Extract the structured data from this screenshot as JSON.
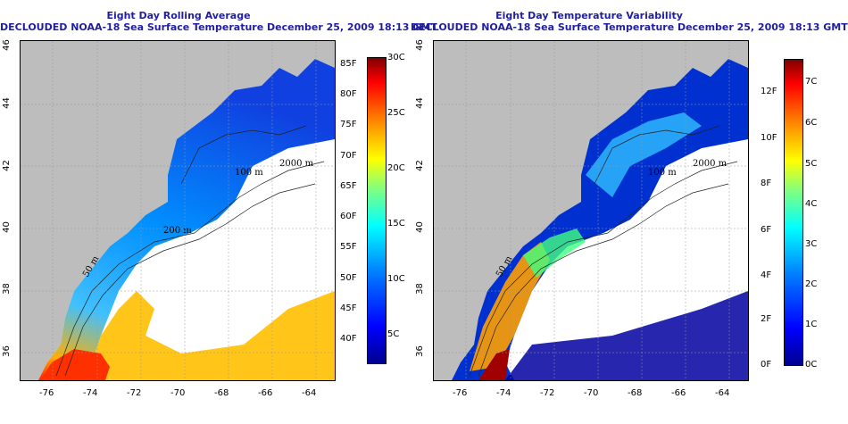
{
  "left": {
    "title_line1": "Eight Day Rolling Average",
    "title_line2": "DECLOUDED NOAA-18 Sea Surface Temperature December 25, 2009 18:13 GMT",
    "contours": [
      "2000 m",
      "100 m",
      "200 m",
      "50 m"
    ],
    "colorbar_f": [
      "85F",
      "80F",
      "75F",
      "70F",
      "65F",
      "60F",
      "55F",
      "50F",
      "45F",
      "40F"
    ],
    "colorbar_c": [
      "30C",
      "25C",
      "20C",
      "15C",
      "10C",
      "5C"
    ],
    "colors": [
      "#00008f",
      "#0000ff",
      "#0080ff",
      "#00ffff",
      "#80ff80",
      "#ffff00",
      "#ff8000",
      "#ff0000",
      "#800000"
    ]
  },
  "right": {
    "title_line1": "Eight Day Temperature Variability",
    "title_line2": "DECLOUDED NOAA-18 Sea Surface Temperature December 25, 2009 18:13 GMT",
    "contours": [
      "2000 m",
      "100 m",
      "50 m"
    ],
    "colorbar_f": [
      "12F",
      "10F",
      "8F",
      "6F",
      "4F",
      "2F",
      "0F"
    ],
    "colorbar_c": [
      "7C",
      "6C",
      "5C",
      "4C",
      "3C",
      "2C",
      "1C",
      "0C"
    ],
    "colors": [
      "#00008f",
      "#0000ff",
      "#0080ff",
      "#00ffff",
      "#80ff80",
      "#ffff00",
      "#ff8000",
      "#ff0000",
      "#800000"
    ]
  },
  "axes": {
    "lon_ticks": [
      "-76",
      "-74",
      "-72",
      "-70",
      "-68",
      "-66",
      "-64"
    ],
    "lat_ticks": [
      "46",
      "44",
      "42",
      "40",
      "38",
      "36"
    ]
  }
}
